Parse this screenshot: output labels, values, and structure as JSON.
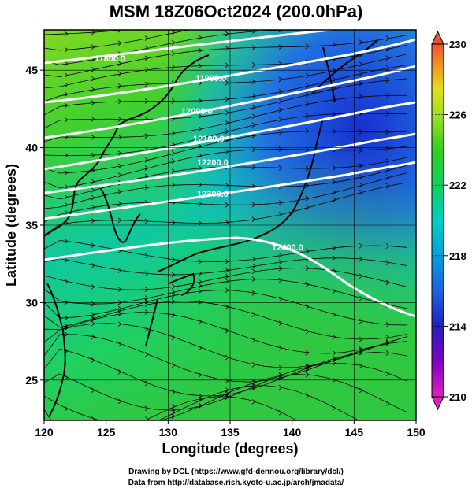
{
  "title": "MSM 18Z06Oct2024 (200.0hPa)",
  "map": {
    "xlabel": "Longitude (degrees)",
    "ylabel": "Latitude  (degrees)",
    "x_ticks": [
      "120",
      "125",
      "130",
      "135",
      "140",
      "145",
      "150"
    ],
    "y_ticks": [
      "25",
      "30",
      "35",
      "40",
      "45"
    ],
    "lon_range": [
      120,
      150
    ],
    "lat_range": [
      22.4,
      47.6
    ],
    "field": "temperature shading (K) with streamlines and geopotential height contours (m)",
    "contour_labels": [
      "11800.0",
      "11900.0",
      "12000.0",
      "12100.0",
      "12200.0",
      "12300.0",
      "12400.0"
    ]
  },
  "colorbar": {
    "ticks": [
      "210",
      "214",
      "218",
      "222",
      "226",
      "230"
    ],
    "colors": [
      "#e020c0",
      "#8000c0",
      "#2020c0",
      "#2060e0",
      "#00a0e0",
      "#00d0c0",
      "#10d060",
      "#30d020",
      "#a0e020",
      "#e0e020",
      "#f0a020",
      "#f05030"
    ]
  },
  "footer": {
    "line1": "Drawing by DCL (https://www.gfd-dennou.org/library/dcl/)",
    "line2": "Data from http://database.rish.kyoto-u.ac.jp/arch/jmadata/"
  }
}
